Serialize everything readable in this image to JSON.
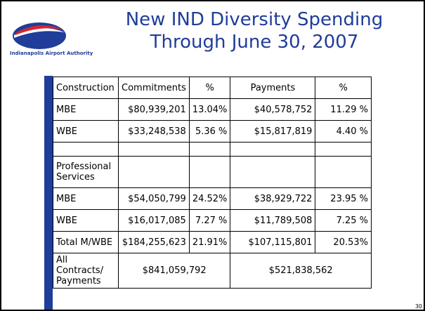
{
  "logo_text": "Indianapolis Airport Authority",
  "title": [
    "New IND Diversity Spending",
    "Through June 30, 2007"
  ],
  "table": {
    "header": [
      "Construction",
      "Commitments",
      "%",
      "Payments",
      "%"
    ],
    "rows": [
      [
        "MBE",
        "$80,939,201",
        "13.04%",
        "$40,578,752",
        "11.29 %"
      ],
      [
        "WBE",
        "$33,248,538",
        "5.36 %",
        "$15,817,819",
        "4.40 %"
      ],
      [
        "Professional Services"
      ],
      [
        "MBE",
        "$54,050,799",
        "24.52%",
        "$38,929,722",
        "23.95 %"
      ],
      [
        "WBE",
        "$16,017,085",
        "7.27 %",
        "$11,789,508",
        "7.25 %"
      ],
      [
        "Total M/WBE",
        "$184,255,623",
        "21.91%",
        "$107,115,801",
        "20.53%"
      ],
      [
        "All Contracts/ Payments",
        "$841,059,792",
        "$521,838,562"
      ]
    ]
  },
  "page_number": "30"
}
